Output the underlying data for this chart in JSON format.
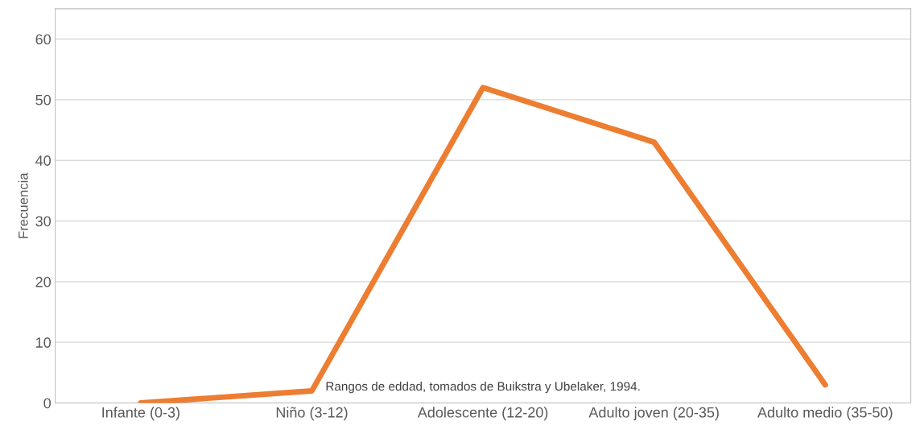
{
  "chart_data": {
    "type": "line",
    "ylabel": "Frecuencia",
    "categories": [
      "Infante (0-3)",
      "Niño (3-12)",
      "Adolescente (12-20)",
      "Adulto joven (20-35)",
      "Adulto medio (35-50)"
    ],
    "series": [
      {
        "color": "#ed7d31",
        "values": [
          0,
          2,
          52,
          43,
          3
        ]
      }
    ],
    "ylim": [
      0,
      65
    ],
    "yticks": [
      0,
      10,
      20,
      30,
      40,
      50,
      60
    ],
    "grid": "y",
    "marker": "none",
    "line_style": "solid",
    "annotations": [
      "Rangos de eddad, tomados de Buikstra y Ubelaker, 1994."
    ]
  }
}
